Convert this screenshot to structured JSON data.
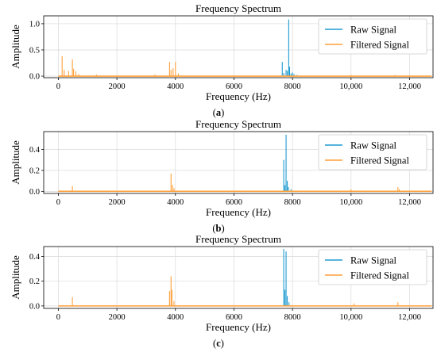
{
  "chart_data": [
    {
      "type": "line",
      "caption": "(a)",
      "title": "Frequency Spectrum",
      "xlabel": "Frequency (Hz)",
      "ylabel": "Amplitude",
      "xlim": [
        -500,
        12800
      ],
      "ylim": [
        -0.03,
        1.15
      ],
      "xticks": [
        0,
        2000,
        4000,
        6000,
        8000,
        10000,
        12000
      ],
      "xtick_labels": [
        "0",
        "2000",
        "4000",
        "6000",
        "8000",
        "10,000",
        "12,000"
      ],
      "yticks": [
        0.0,
        0.5,
        1.0
      ],
      "ytick_labels": [
        "0.0",
        "0.5",
        "1.0"
      ],
      "grid": true,
      "legend_position": "top-right",
      "series": [
        {
          "name": "Raw Signal",
          "color": "#1f9bd0",
          "x": [
            7650,
            7700,
            7780,
            7820,
            7870,
            7900,
            7950,
            8000,
            8050,
            8150
          ],
          "y": [
            0.27,
            0.06,
            0.12,
            0.1,
            1.08,
            0.18,
            0.05,
            0.07,
            0.04,
            0.02
          ]
        },
        {
          "name": "Filtered Signal",
          "color": "#ff9f3a",
          "x": [
            130,
            200,
            350,
            480,
            520,
            600,
            700,
            1300,
            3300,
            3800,
            3850,
            3920,
            4000,
            4100,
            10000,
            11500
          ],
          "y": [
            0.38,
            0.12,
            0.1,
            0.32,
            0.14,
            0.09,
            0.04,
            0.03,
            0.03,
            0.27,
            0.12,
            0.15,
            0.27,
            0.05,
            0.02,
            0.02
          ]
        }
      ]
    },
    {
      "type": "line",
      "caption": "(b)",
      "title": "Frequency Spectrum",
      "xlabel": "Frequency (Hz)",
      "ylabel": "Amplitude",
      "xlim": [
        -500,
        12800
      ],
      "ylim": [
        -0.02,
        0.57
      ],
      "xticks": [
        0,
        2000,
        4000,
        6000,
        8000,
        10000,
        12000
      ],
      "xtick_labels": [
        "0",
        "2000",
        "4000",
        "6000",
        "8000",
        "10,000",
        "12,000"
      ],
      "yticks": [
        0.0,
        0.2,
        0.4
      ],
      "ytick_labels": [
        "0.0",
        "0.2",
        "0.4"
      ],
      "grid": true,
      "legend_position": "top-right",
      "series": [
        {
          "name": "Raw Signal",
          "color": "#1f9bd0",
          "x": [
            7700,
            7740,
            7780,
            7820,
            7860,
            7950
          ],
          "y": [
            0.3,
            0.06,
            0.54,
            0.1,
            0.04,
            0.02
          ]
        },
        {
          "name": "Filtered Signal",
          "color": "#ff9f3a",
          "x": [
            480,
            3850,
            3900,
            3950,
            10000,
            11600,
            11650
          ],
          "y": [
            0.05,
            0.17,
            0.06,
            0.03,
            0.02,
            0.04,
            0.02
          ]
        }
      ]
    },
    {
      "type": "line",
      "caption": "(c)",
      "title": "Frequency Spectrum",
      "xlabel": "Frequency (Hz)",
      "ylabel": "Amplitude",
      "xlim": [
        -500,
        12800
      ],
      "ylim": [
        -0.02,
        0.48
      ],
      "xticks": [
        0,
        2000,
        4000,
        6000,
        8000,
        10000,
        12000
      ],
      "xtick_labels": [
        "0",
        "2000",
        "4000",
        "6000",
        "8000",
        "10,000",
        "12,000"
      ],
      "yticks": [
        0.0,
        0.2,
        0.4
      ],
      "ytick_labels": [
        "0.0",
        "0.2",
        "0.4"
      ],
      "grid": true,
      "legend_position": "top-right",
      "series": [
        {
          "name": "Raw Signal",
          "color": "#1f9bd0",
          "x": [
            7700,
            7740,
            7780,
            7820,
            7880
          ],
          "y": [
            0.46,
            0.13,
            0.44,
            0.08,
            0.03
          ]
        },
        {
          "name": "Filtered Signal",
          "color": "#ff9f3a",
          "x": [
            480,
            3800,
            3850,
            3880,
            3950,
            10100,
            11600
          ],
          "y": [
            0.07,
            0.12,
            0.24,
            0.13,
            0.04,
            0.02,
            0.03
          ]
        }
      ]
    }
  ]
}
